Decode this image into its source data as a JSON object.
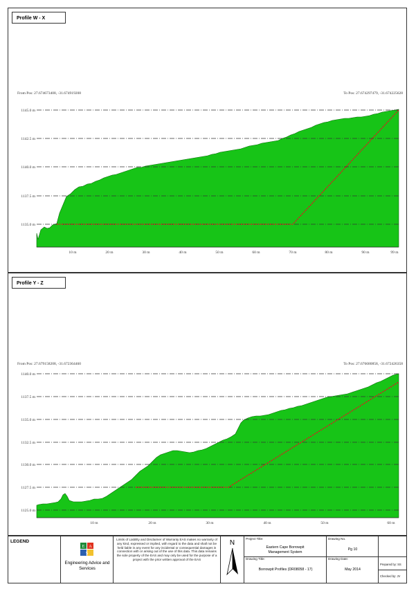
{
  "profiles": [
    {
      "title": "Profile W - X",
      "from_pos": "From Pos: 27.674673408, -31.674919208",
      "to_pos": "To Pos: 27.674297479, -31.674225628",
      "y_labels": [
        "1145.0 m",
        "1142.5 m",
        "1140.0 m",
        "1137.5 m",
        "1135.0 m"
      ],
      "x_labels": [
        "10 m",
        "20 m",
        "30 m",
        "40 m",
        "50 m",
        "60 m",
        "70 m",
        "80 m",
        "90 m",
        "99 m"
      ],
      "terrain_color": "#17c417",
      "line_color": "#d42020"
    },
    {
      "title": "Profile Y - Z",
      "from_pos": "From Pos: 27.679158208, -31.672364460",
      "to_pos": "To Pos: 27.676680858, -31.672426358",
      "y_labels": [
        "1140.0 m",
        "1137.5 m",
        "1135.0 m",
        "1132.5 m",
        "1130.0 m",
        "1127.5 m",
        "1125.0 m"
      ],
      "x_labels": [
        "10 m",
        "20 m",
        "30 m",
        "40 m",
        "50 m",
        "60 m"
      ],
      "terrain_color": "#17c417",
      "line_color": "#d42020"
    }
  ],
  "title_block": {
    "legend": "LEGEND",
    "company": "Engineering Advice and Services",
    "disclaimer": "Limits of Liability and Disclaimer of Warranty EAS makes no warranty of any kind, expressed or implied, with regard to the data and shall not be held liable in any event for any incidental or consequential damages in connection with or arising out of the use of this data. This data remains the sole property of the EAS and may only be used for the purpose of a project with the prior written approval of the EAS",
    "north": "N",
    "project_title_label": "Project Title:",
    "project_title": "Eastern Cape Borrowpit Management System",
    "drawing_title_label": "Drawing Title:",
    "drawing_title": "Borrowpit Profiles (DR08058 - 17)",
    "drawing_no_label": "Drawing No.",
    "drawing_no": "Pg 10",
    "drawing_date_label": "Drawing Date:",
    "drawing_date": "May 2014",
    "prepared_by": "Prepared by: SS",
    "checked_by": "Checked by: JV"
  }
}
